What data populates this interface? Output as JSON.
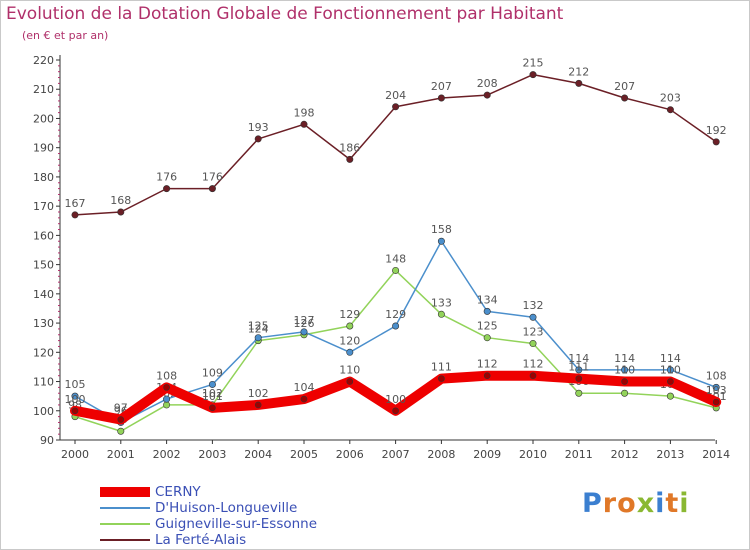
{
  "title": "Evolution de la Dotation Globale de Fonctionnement par Habitant",
  "subtitle": "(en € et par an)",
  "logo": {
    "letters": [
      {
        "ch": "P",
        "color": "#3b7fd0"
      },
      {
        "ch": "r",
        "color": "#e07828"
      },
      {
        "ch": "o",
        "color": "#e07828"
      },
      {
        "ch": "x",
        "color": "#8ab832"
      },
      {
        "ch": "i",
        "color": "#3b7fd0"
      },
      {
        "ch": "t",
        "color": "#e07828"
      },
      {
        "ch": "i",
        "color": "#8ab832"
      }
    ]
  },
  "chart_data": {
    "type": "line",
    "x": [
      "2000",
      "2001",
      "2002",
      "2003",
      "2004",
      "2005",
      "2006",
      "2007",
      "2008",
      "2009",
      "2010",
      "2011",
      "2012",
      "2013",
      "2014"
    ],
    "ylim": [
      90,
      220
    ],
    "yticks": [
      90,
      100,
      110,
      120,
      130,
      140,
      150,
      160,
      170,
      180,
      190,
      200,
      210,
      220
    ],
    "grid": false,
    "legend_position": "bottom-left",
    "series": [
      {
        "name": "La Ferté-Alais",
        "color": "#6b1f26",
        "values": [
          167,
          168,
          176,
          176,
          193,
          198,
          186,
          204,
          207,
          208,
          215,
          212,
          207,
          203,
          192
        ]
      },
      {
        "name": "Guigneville-sur-Essonne",
        "color": "#92d35a",
        "values": [
          98,
          93,
          102,
          102,
          124,
          126,
          129,
          148,
          133,
          125,
          123,
          106,
          106,
          105,
          101
        ]
      },
      {
        "name": "D'Huison-Longueville",
        "color": "#4b8fcc",
        "values": [
          105,
          96,
          104,
          109,
          125,
          127,
          120,
          129,
          158,
          134,
          132,
          114,
          114,
          114,
          108
        ]
      },
      {
        "name": "CERNY",
        "color": "#ee0000",
        "values": [
          100,
          97,
          108,
          101,
          102,
          104,
          110,
          100,
          111,
          112,
          112,
          111,
          110,
          110,
          103
        ]
      }
    ]
  },
  "legend": [
    {
      "name": "CERNY",
      "color": "#ee0000",
      "width": 10
    },
    {
      "name": "D'Huison-Longueville",
      "color": "#4b8fcc",
      "width": 1.5
    },
    {
      "name": "Guigneville-sur-Essonne",
      "color": "#92d35a",
      "width": 1.5
    },
    {
      "name": "La Ferté-Alais",
      "color": "#6b1f26",
      "width": 1.5
    }
  ]
}
